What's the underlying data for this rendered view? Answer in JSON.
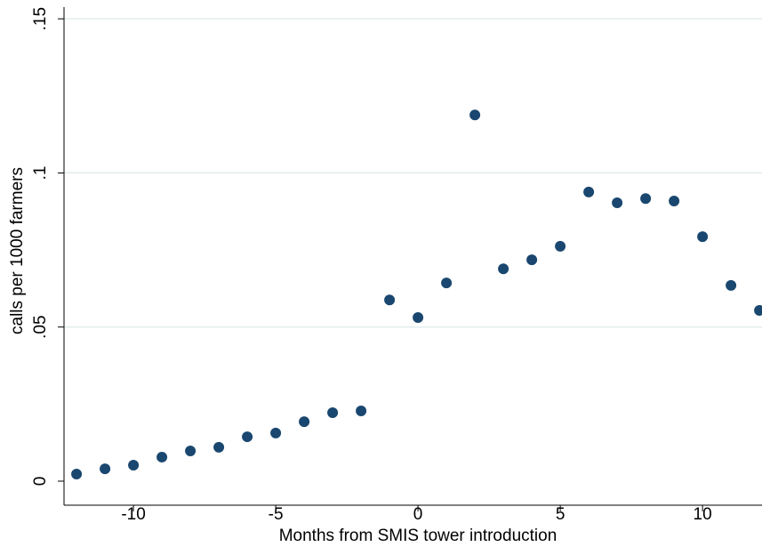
{
  "chart_data": {
    "type": "scatter",
    "x_label": "Months from SMIS tower introduction",
    "y_label": "calls per 1000 farmers",
    "x": [
      -12,
      -11,
      -10,
      -9,
      -8,
      -7,
      -6,
      -5,
      -4,
      -3,
      -2,
      -1,
      0,
      1,
      2,
      3,
      4,
      5,
      6,
      7,
      8,
      9,
      10,
      11,
      12
    ],
    "values": [
      0.0023,
      0.004,
      0.0052,
      0.0078,
      0.0098,
      0.011,
      0.0144,
      0.0156,
      0.0193,
      0.0222,
      0.0228,
      0.0588,
      0.0531,
      0.0643,
      0.1188,
      0.0689,
      0.0718,
      0.0762,
      0.0938,
      0.0903,
      0.0917,
      0.0909,
      0.0793,
      0.0635,
      0.0554
    ],
    "color": "#1a476f",
    "xlim": [
      -12.44,
      12.09
    ],
    "ylim": [
      -0.0078,
      0.1538
    ],
    "xticks": [
      -10,
      -5,
      0,
      5,
      10
    ],
    "yticks": [
      0,
      {
        "value": 0.05,
        "label": ".05"
      },
      {
        "value": 0.1,
        "label": ".1"
      },
      {
        "value": 0.15,
        "label": ".15"
      }
    ],
    "grid": true
  }
}
